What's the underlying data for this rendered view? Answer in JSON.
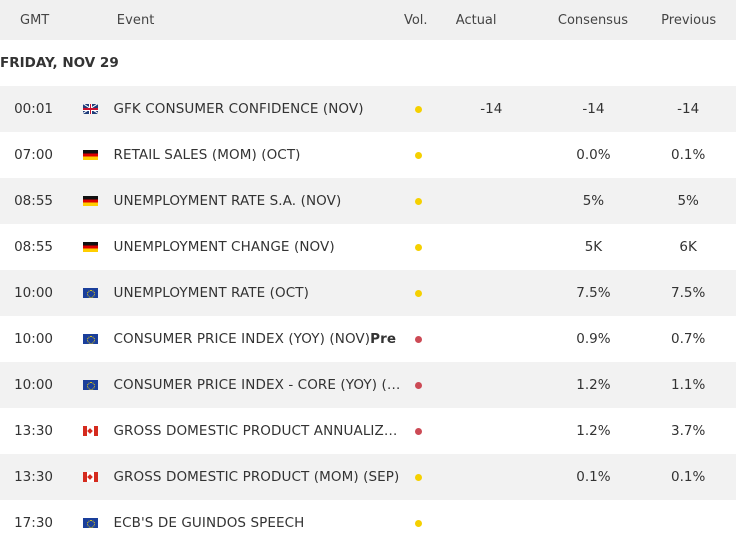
{
  "headers": {
    "gmt": "GMT",
    "event": "Event",
    "vol": "Vol.",
    "actual": "Actual",
    "consensus": "Consensus",
    "previous": "Previous"
  },
  "date_label": "FRIDAY, NOV 29",
  "colors": {
    "volatility_medium": "#f5d000",
    "volatility_high": "#cc4a55",
    "row_alt": "#f2f2f2",
    "header_bg": "#f0f0f0"
  },
  "rows": [
    {
      "time": "00:01",
      "flag_icon": "flag-uk-icon",
      "event": "GFK CONSUMER CONFIDENCE (NOV)",
      "event_suffix": "",
      "volatility": "medium",
      "actual": "-14",
      "consensus": "-14",
      "previous": "-14"
    },
    {
      "time": "07:00",
      "flag_icon": "flag-germany-icon",
      "event": "RETAIL SALES (MOM) (OCT)",
      "event_suffix": "",
      "volatility": "medium",
      "actual": "",
      "consensus": "0.0%",
      "previous": "0.1%"
    },
    {
      "time": "08:55",
      "flag_icon": "flag-germany-icon",
      "event": "UNEMPLOYMENT RATE S.A. (NOV)",
      "event_suffix": "",
      "volatility": "medium",
      "actual": "",
      "consensus": "5%",
      "previous": "5%"
    },
    {
      "time": "08:55",
      "flag_icon": "flag-germany-icon",
      "event": "UNEMPLOYMENT CHANGE (NOV)",
      "event_suffix": "",
      "volatility": "medium",
      "actual": "",
      "consensus": "5K",
      "previous": "6K"
    },
    {
      "time": "10:00",
      "flag_icon": "flag-eu-icon",
      "event": "UNEMPLOYMENT RATE (OCT)",
      "event_suffix": "",
      "volatility": "medium",
      "actual": "",
      "consensus": "7.5%",
      "previous": "7.5%"
    },
    {
      "time": "10:00",
      "flag_icon": "flag-eu-icon",
      "event": "CONSUMER PRICE INDEX (YOY) (NOV)",
      "event_suffix": "Pre",
      "volatility": "high",
      "actual": "",
      "consensus": "0.9%",
      "previous": "0.7%"
    },
    {
      "time": "10:00",
      "flag_icon": "flag-eu-icon",
      "event": "CONSUMER PRICE INDEX - CORE (YOY) (N...",
      "event_suffix": "",
      "volatility": "high",
      "actual": "",
      "consensus": "1.2%",
      "previous": "1.1%"
    },
    {
      "time": "13:30",
      "flag_icon": "flag-canada-icon",
      "event": "GROSS DOMESTIC PRODUCT ANNUALIZE...",
      "event_suffix": "",
      "volatility": "high",
      "actual": "",
      "consensus": "1.2%",
      "previous": "3.7%"
    },
    {
      "time": "13:30",
      "flag_icon": "flag-canada-icon",
      "event": "GROSS DOMESTIC PRODUCT (MOM) (SEP)",
      "event_suffix": "",
      "volatility": "medium",
      "actual": "",
      "consensus": "0.1%",
      "previous": "0.1%"
    },
    {
      "time": "17:30",
      "flag_icon": "flag-eu-icon",
      "event": "ECB'S DE GUINDOS SPEECH",
      "event_suffix": "",
      "volatility": "medium",
      "actual": "",
      "consensus": "",
      "previous": ""
    }
  ]
}
